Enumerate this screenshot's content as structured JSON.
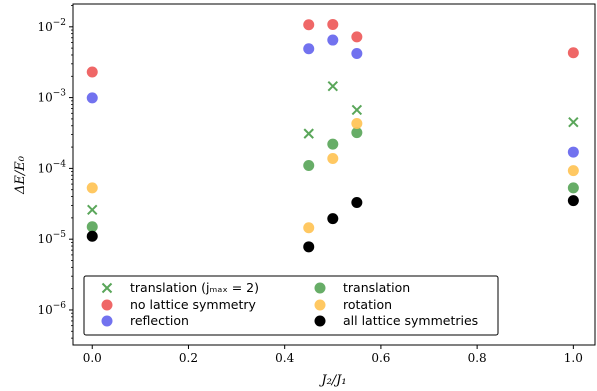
{
  "chart_data": {
    "type": "scatter",
    "xlabel": "J₂/J₁",
    "ylabel": "ΔE/E₀",
    "xlim": [
      -0.04,
      1.045
    ],
    "ylim": [
      3.2e-07,
      0.021
    ],
    "yscale": "log",
    "x_ticks": [
      0.0,
      0.2,
      0.4,
      0.6,
      0.8,
      1.0
    ],
    "x_tick_labels": [
      "0.0",
      "0.2",
      "0.4",
      "0.6",
      "0.8",
      "1.0"
    ],
    "y_ticks": [
      1e-06,
      1e-05,
      0.0001,
      0.001,
      0.01
    ],
    "y_tick_labels": [
      {
        "base": "10",
        "exp": "−6"
      },
      {
        "base": "10",
        "exp": "−5"
      },
      {
        "base": "10",
        "exp": "−4"
      },
      {
        "base": "10",
        "exp": "−3"
      },
      {
        "base": "10",
        "exp": "−2"
      }
    ],
    "legend_position": "lower-left",
    "series": [
      {
        "name": "translation (jₘₐₓ = 2)",
        "marker": "x",
        "color": "#5aa65a",
        "x": [
          0.0,
          0.45,
          0.5,
          0.55,
          1.0
        ],
        "y": [
          2.6e-05,
          0.00031,
          0.00145,
          0.00067,
          0.00045
        ]
      },
      {
        "name": "no lattice symmetry",
        "marker": "o",
        "color": "#ee5a5a",
        "x": [
          0.0,
          0.45,
          0.5,
          0.55,
          1.0
        ],
        "y": [
          0.0023,
          0.0107,
          0.0108,
          0.0072,
          0.0043
        ]
      },
      {
        "name": "reflection",
        "marker": "o",
        "color": "#6666ee",
        "x": [
          0.0,
          0.45,
          0.5,
          0.55,
          1.0
        ],
        "y": [
          0.00099,
          0.0049,
          0.0065,
          0.0042,
          0.00017
        ]
      },
      {
        "name": "translation",
        "marker": "o",
        "color": "#5aa65a",
        "x": [
          0.0,
          0.45,
          0.5,
          0.55,
          1.0
        ],
        "y": [
          1.5e-05,
          0.00011,
          0.00022,
          0.00032,
          5.3e-05
        ]
      },
      {
        "name": "rotation",
        "marker": "o",
        "color": "#ffc355",
        "x": [
          0.0,
          0.45,
          0.5,
          0.55,
          1.0
        ],
        "y": [
          5.3e-05,
          1.45e-05,
          0.000138,
          0.00043,
          9.3e-05
        ]
      },
      {
        "name": "all lattice symmetries",
        "marker": "o",
        "color": "#000000",
        "x": [
          0.0,
          0.45,
          0.5,
          0.55,
          1.0
        ],
        "y": [
          1.1e-05,
          7.8e-06,
          1.95e-05,
          3.3e-05,
          3.5e-05
        ]
      }
    ]
  }
}
